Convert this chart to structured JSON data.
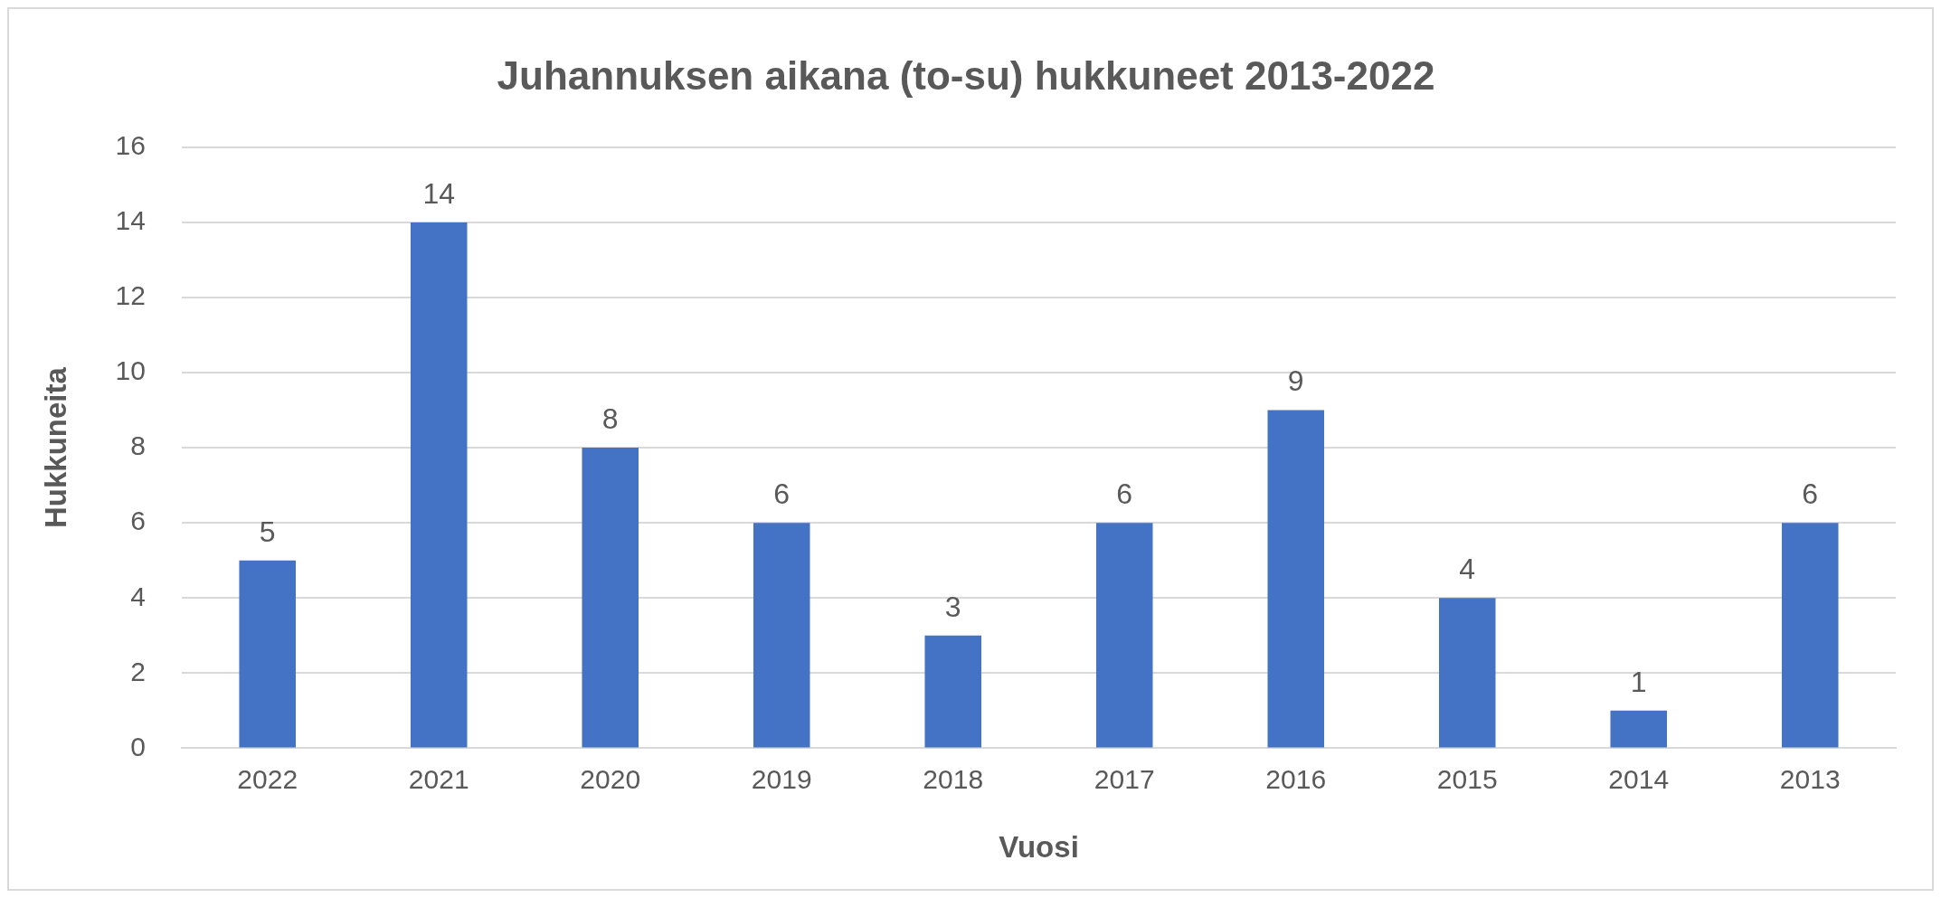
{
  "chart_data": {
    "type": "bar",
    "title": "Juhannuksen aikana (to-su) hukkuneet 2013-2022",
    "xlabel": "Vuosi",
    "ylabel": "Hukkuneita",
    "categories": [
      "2022",
      "2021",
      "2020",
      "2019",
      "2018",
      "2017",
      "2016",
      "2015",
      "2014",
      "2013"
    ],
    "values": [
      5,
      14,
      8,
      6,
      3,
      6,
      9,
      4,
      1,
      6
    ],
    "color": "#4472c4",
    "ylim": [
      0,
      16
    ],
    "yticks": [
      0,
      2,
      4,
      6,
      8,
      10,
      12,
      14,
      16
    ],
    "grid": "y",
    "data_labels": true
  }
}
